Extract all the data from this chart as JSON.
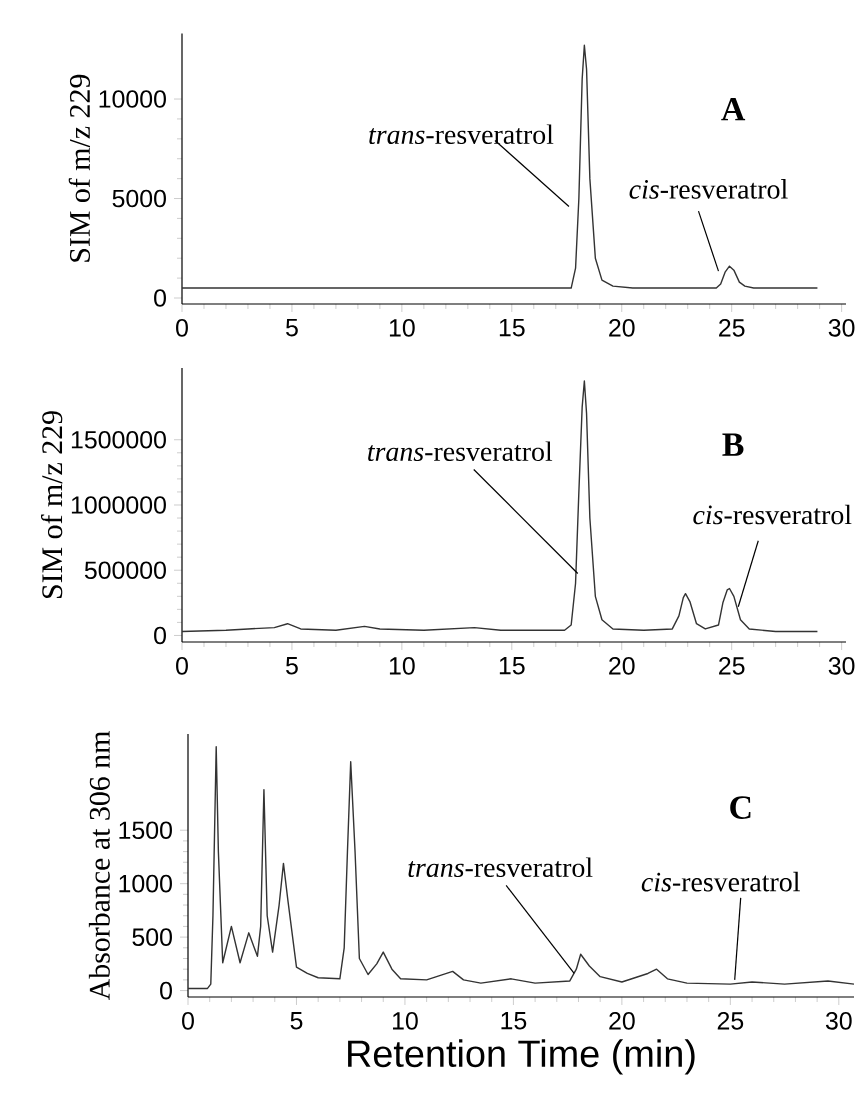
{
  "chart_data": [
    {
      "type": "line",
      "color": "#333333",
      "ylabel": "SIM of m/z 229",
      "xlim": [
        0,
        30.2
      ],
      "xticks": [
        0,
        5,
        10,
        15,
        20,
        25,
        30
      ],
      "ylim": [
        -300,
        13300
      ],
      "yticks": [
        0,
        5000,
        10000
      ],
      "x": [
        0,
        17.7,
        17.9,
        18.05,
        18.2,
        18.3,
        18.4,
        18.55,
        18.8,
        19.1,
        19.6,
        20.5,
        24.3,
        24.5,
        24.7,
        24.9,
        25.1,
        25.35,
        25.6,
        26.0,
        28.9
      ],
      "values": [
        500,
        500,
        1500,
        5000,
        11000,
        12700,
        11500,
        6000,
        2000,
        900,
        600,
        500,
        500,
        700,
        1300,
        1600,
        1400,
        800,
        600,
        500,
        500
      ],
      "annotations": [
        "A",
        {
          "text": "*trans*-resveratrol",
          "x": 17.6,
          "y": 4600
        },
        {
          "text": "*cis*-resveratrol",
          "x": 24.4,
          "y": 1350
        }
      ]
    },
    {
      "type": "line",
      "color": "#333333",
      "ylabel": "SIM of m/z 229",
      "xlim": [
        0,
        30.2
      ],
      "xticks": [
        0,
        5,
        10,
        15,
        20,
        25,
        30
      ],
      "ylim": [
        -50000,
        2050000
      ],
      "yticks": [
        0,
        500000,
        1000000,
        1500000
      ],
      "x": [
        0,
        2,
        3,
        4.2,
        4.8,
        5.4,
        7,
        8.3,
        9,
        11,
        13.3,
        14.5,
        17.4,
        17.7,
        17.9,
        18.05,
        18.2,
        18.3,
        18.4,
        18.55,
        18.8,
        19.1,
        19.6,
        21,
        22.3,
        22.6,
        22.8,
        22.9,
        23.1,
        23.4,
        23.8,
        24.4,
        24.6,
        24.8,
        24.9,
        25.1,
        25.4,
        25.8,
        27,
        28.9
      ],
      "values": [
        30000,
        40000,
        50000,
        60000,
        90000,
        50000,
        40000,
        70000,
        50000,
        40000,
        60000,
        40000,
        40000,
        80000,
        400000,
        1100000,
        1750000,
        1950000,
        1700000,
        900000,
        300000,
        120000,
        50000,
        40000,
        50000,
        150000,
        290000,
        320000,
        260000,
        90000,
        50000,
        80000,
        250000,
        350000,
        360000,
        300000,
        120000,
        50000,
        30000,
        30000
      ],
      "annotations": [
        "B",
        {
          "text": "*trans*-resveratrol",
          "x": 18.0,
          "y": 475000
        },
        {
          "text": "*cis*-resveratrol",
          "x": 25.3,
          "y": 220000
        }
      ]
    },
    {
      "type": "line",
      "color": "#333333",
      "ylabel": "Absorbance at 306 nm",
      "xlabel": "Retention Time (min)",
      "xlim": [
        0,
        30.7
      ],
      "xticks": [
        0,
        5,
        10,
        15,
        20,
        25,
        30
      ],
      "ylim": [
        -60,
        2400
      ],
      "yticks": [
        0,
        500,
        1000,
        1500
      ],
      "x": [
        0,
        0.9,
        1.05,
        1.15,
        1.3,
        1.4,
        1.6,
        2.0,
        2.4,
        2.8,
        3.2,
        3.35,
        3.5,
        3.65,
        3.9,
        4.2,
        4.4,
        4.6,
        5.0,
        5.5,
        6.0,
        7.0,
        7.2,
        7.35,
        7.5,
        7.7,
        7.9,
        8.3,
        8.7,
        9.0,
        9.4,
        9.8,
        11,
        12.2,
        12.7,
        13.5,
        14.9,
        16,
        17.6,
        17.9,
        18.1,
        18.5,
        19,
        20,
        21.2,
        21.6,
        22.1,
        23,
        25,
        26,
        27.5,
        29.5,
        30.7
      ],
      "values": [
        20,
        20,
        60,
        700,
        2280,
        1300,
        260,
        600,
        260,
        540,
        320,
        600,
        1880,
        700,
        360,
        800,
        1190,
        850,
        220,
        160,
        120,
        110,
        400,
        1300,
        2140,
        1300,
        300,
        150,
        250,
        360,
        200,
        110,
        100,
        180,
        100,
        70,
        110,
        70,
        90,
        200,
        340,
        230,
        130,
        80,
        160,
        200,
        110,
        70,
        60,
        80,
        60,
        90,
        60
      ],
      "annotations": [
        "C",
        {
          "text": "*trans*-resveratrol",
          "x": 17.8,
          "y": 160
        },
        {
          "text": "*cis*-resveratrol",
          "x": 25.2,
          "y": 100
        }
      ]
    }
  ]
}
